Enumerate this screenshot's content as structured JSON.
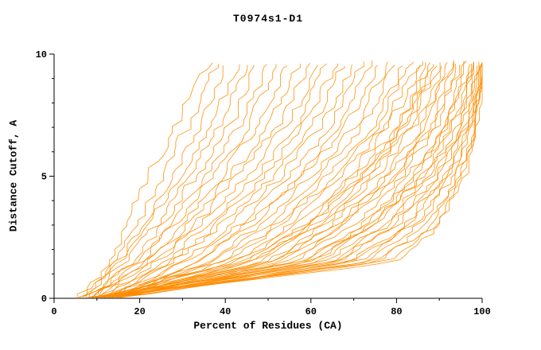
{
  "chart_data": {
    "type": "line",
    "title": "T0974s1-D1",
    "xlabel": "Percent of Residues (CA)",
    "ylabel": "Distance Cutoff, A",
    "xlim": [
      0,
      100
    ],
    "ylim": [
      0,
      10
    ],
    "xticks": [
      0,
      20,
      40,
      60,
      80,
      100
    ],
    "yticks": [
      0,
      5,
      10
    ],
    "x_minor_step": 10,
    "y_minor_step": 1,
    "grid": false,
    "legend": "none",
    "line_color": "#ff8c00",
    "axis_color": "#000000",
    "background": "#ffffff",
    "jitter_seed": 42,
    "y_grid": [
      0,
      1.5,
      3,
      5,
      7,
      9.7
    ],
    "series": [
      {
        "x": [
          6,
          13,
          17,
          22,
          28,
          36
        ]
      },
      {
        "x": [
          7,
          14,
          19,
          25,
          31,
          38
        ]
      },
      {
        "x": [
          5,
          15,
          21,
          27,
          34,
          40
        ]
      },
      {
        "x": [
          8,
          16,
          22,
          29,
          36,
          43
        ]
      },
      {
        "x": [
          6,
          17,
          24,
          31,
          38,
          45
        ]
      },
      {
        "x": [
          9,
          18,
          25,
          33,
          41,
          47
        ]
      },
      {
        "x": [
          7,
          19,
          27,
          35,
          43,
          50
        ]
      },
      {
        "x": [
          10,
          20,
          28,
          37,
          45,
          52
        ]
      },
      {
        "x": [
          8,
          21,
          30,
          39,
          47,
          55
        ]
      },
      {
        "x": [
          11,
          22,
          31,
          41,
          50,
          57
        ]
      },
      {
        "x": [
          9,
          23,
          33,
          43,
          52,
          60
        ]
      },
      {
        "x": [
          12,
          24,
          34,
          45,
          54,
          62
        ]
      },
      {
        "x": [
          10,
          26,
          36,
          47,
          56,
          64
        ]
      },
      {
        "x": [
          13,
          27,
          38,
          49,
          58,
          66
        ]
      },
      {
        "x": [
          11,
          28,
          39,
          51,
          60,
          68
        ]
      },
      {
        "x": [
          14,
          30,
          41,
          53,
          62,
          70
        ]
      },
      {
        "x": [
          12,
          31,
          43,
          55,
          64,
          72
        ]
      },
      {
        "x": [
          15,
          33,
          45,
          57,
          66,
          74
        ]
      },
      {
        "x": [
          13,
          34,
          46,
          58,
          68,
          76
        ]
      },
      {
        "x": [
          10,
          36,
          48,
          60,
          70,
          78
        ]
      },
      {
        "x": [
          14,
          37,
          50,
          62,
          72,
          80
        ]
      },
      {
        "x": [
          11,
          39,
          52,
          64,
          74,
          82
        ]
      },
      {
        "x": [
          15,
          40,
          53,
          65,
          75,
          83
        ]
      },
      {
        "x": [
          12,
          42,
          55,
          67,
          77,
          85
        ]
      },
      {
        "x": [
          9,
          43,
          57,
          69,
          78,
          86
        ]
      },
      {
        "x": [
          13,
          45,
          58,
          70,
          80,
          88
        ]
      },
      {
        "x": [
          10,
          46,
          60,
          72,
          81,
          89
        ]
      },
      {
        "x": [
          14,
          48,
          62,
          74,
          83,
          90
        ]
      },
      {
        "x": [
          11,
          50,
          63,
          75,
          84,
          91
        ]
      },
      {
        "x": [
          15,
          51,
          65,
          77,
          86,
          92
        ]
      },
      {
        "x": [
          12,
          53,
          67,
          78,
          87,
          93
        ]
      },
      {
        "x": [
          9,
          55,
          68,
          80,
          88,
          94
        ]
      },
      {
        "x": [
          13,
          56,
          70,
          81,
          89,
          95
        ]
      },
      {
        "x": [
          10,
          58,
          72,
          83,
          91,
          96
        ]
      },
      {
        "x": [
          14,
          60,
          73,
          84,
          92,
          97
        ]
      },
      {
        "x": [
          11,
          62,
          75,
          86,
          93,
          97
        ]
      },
      {
        "x": [
          15,
          63,
          77,
          87,
          94,
          98
        ]
      },
      {
        "x": [
          12,
          65,
          78,
          88,
          95,
          98
        ]
      },
      {
        "x": [
          8,
          67,
          80,
          89,
          95,
          99
        ]
      },
      {
        "x": [
          13,
          69,
          82,
          91,
          96,
          99
        ]
      },
      {
        "x": [
          10,
          71,
          83,
          92,
          97,
          100
        ]
      },
      {
        "x": [
          14,
          73,
          85,
          93,
          97,
          100
        ]
      },
      {
        "x": [
          11,
          75,
          87,
          94,
          98,
          100
        ]
      },
      {
        "x": [
          9,
          78,
          89,
          95,
          98,
          100
        ]
      },
      {
        "x": [
          12,
          81,
          90,
          96,
          99,
          100
        ]
      },
      {
        "x": [
          13,
          58,
          74,
          85,
          92,
          96
        ]
      },
      {
        "x": [
          10,
          52,
          66,
          79,
          88,
          93
        ]
      },
      {
        "x": [
          14,
          47,
          61,
          73,
          82,
          90
        ]
      },
      {
        "x": [
          12,
          66,
          79,
          90,
          96,
          99
        ]
      },
      {
        "x": [
          9,
          61,
          74,
          86,
          93,
          98
        ]
      },
      {
        "x": [
          15,
          70,
          84,
          92,
          97,
          100
        ]
      },
      {
        "x": [
          11,
          44,
          59,
          71,
          81,
          87
        ]
      },
      {
        "x": [
          13,
          76,
          88,
          95,
          98,
          100
        ]
      }
    ]
  }
}
